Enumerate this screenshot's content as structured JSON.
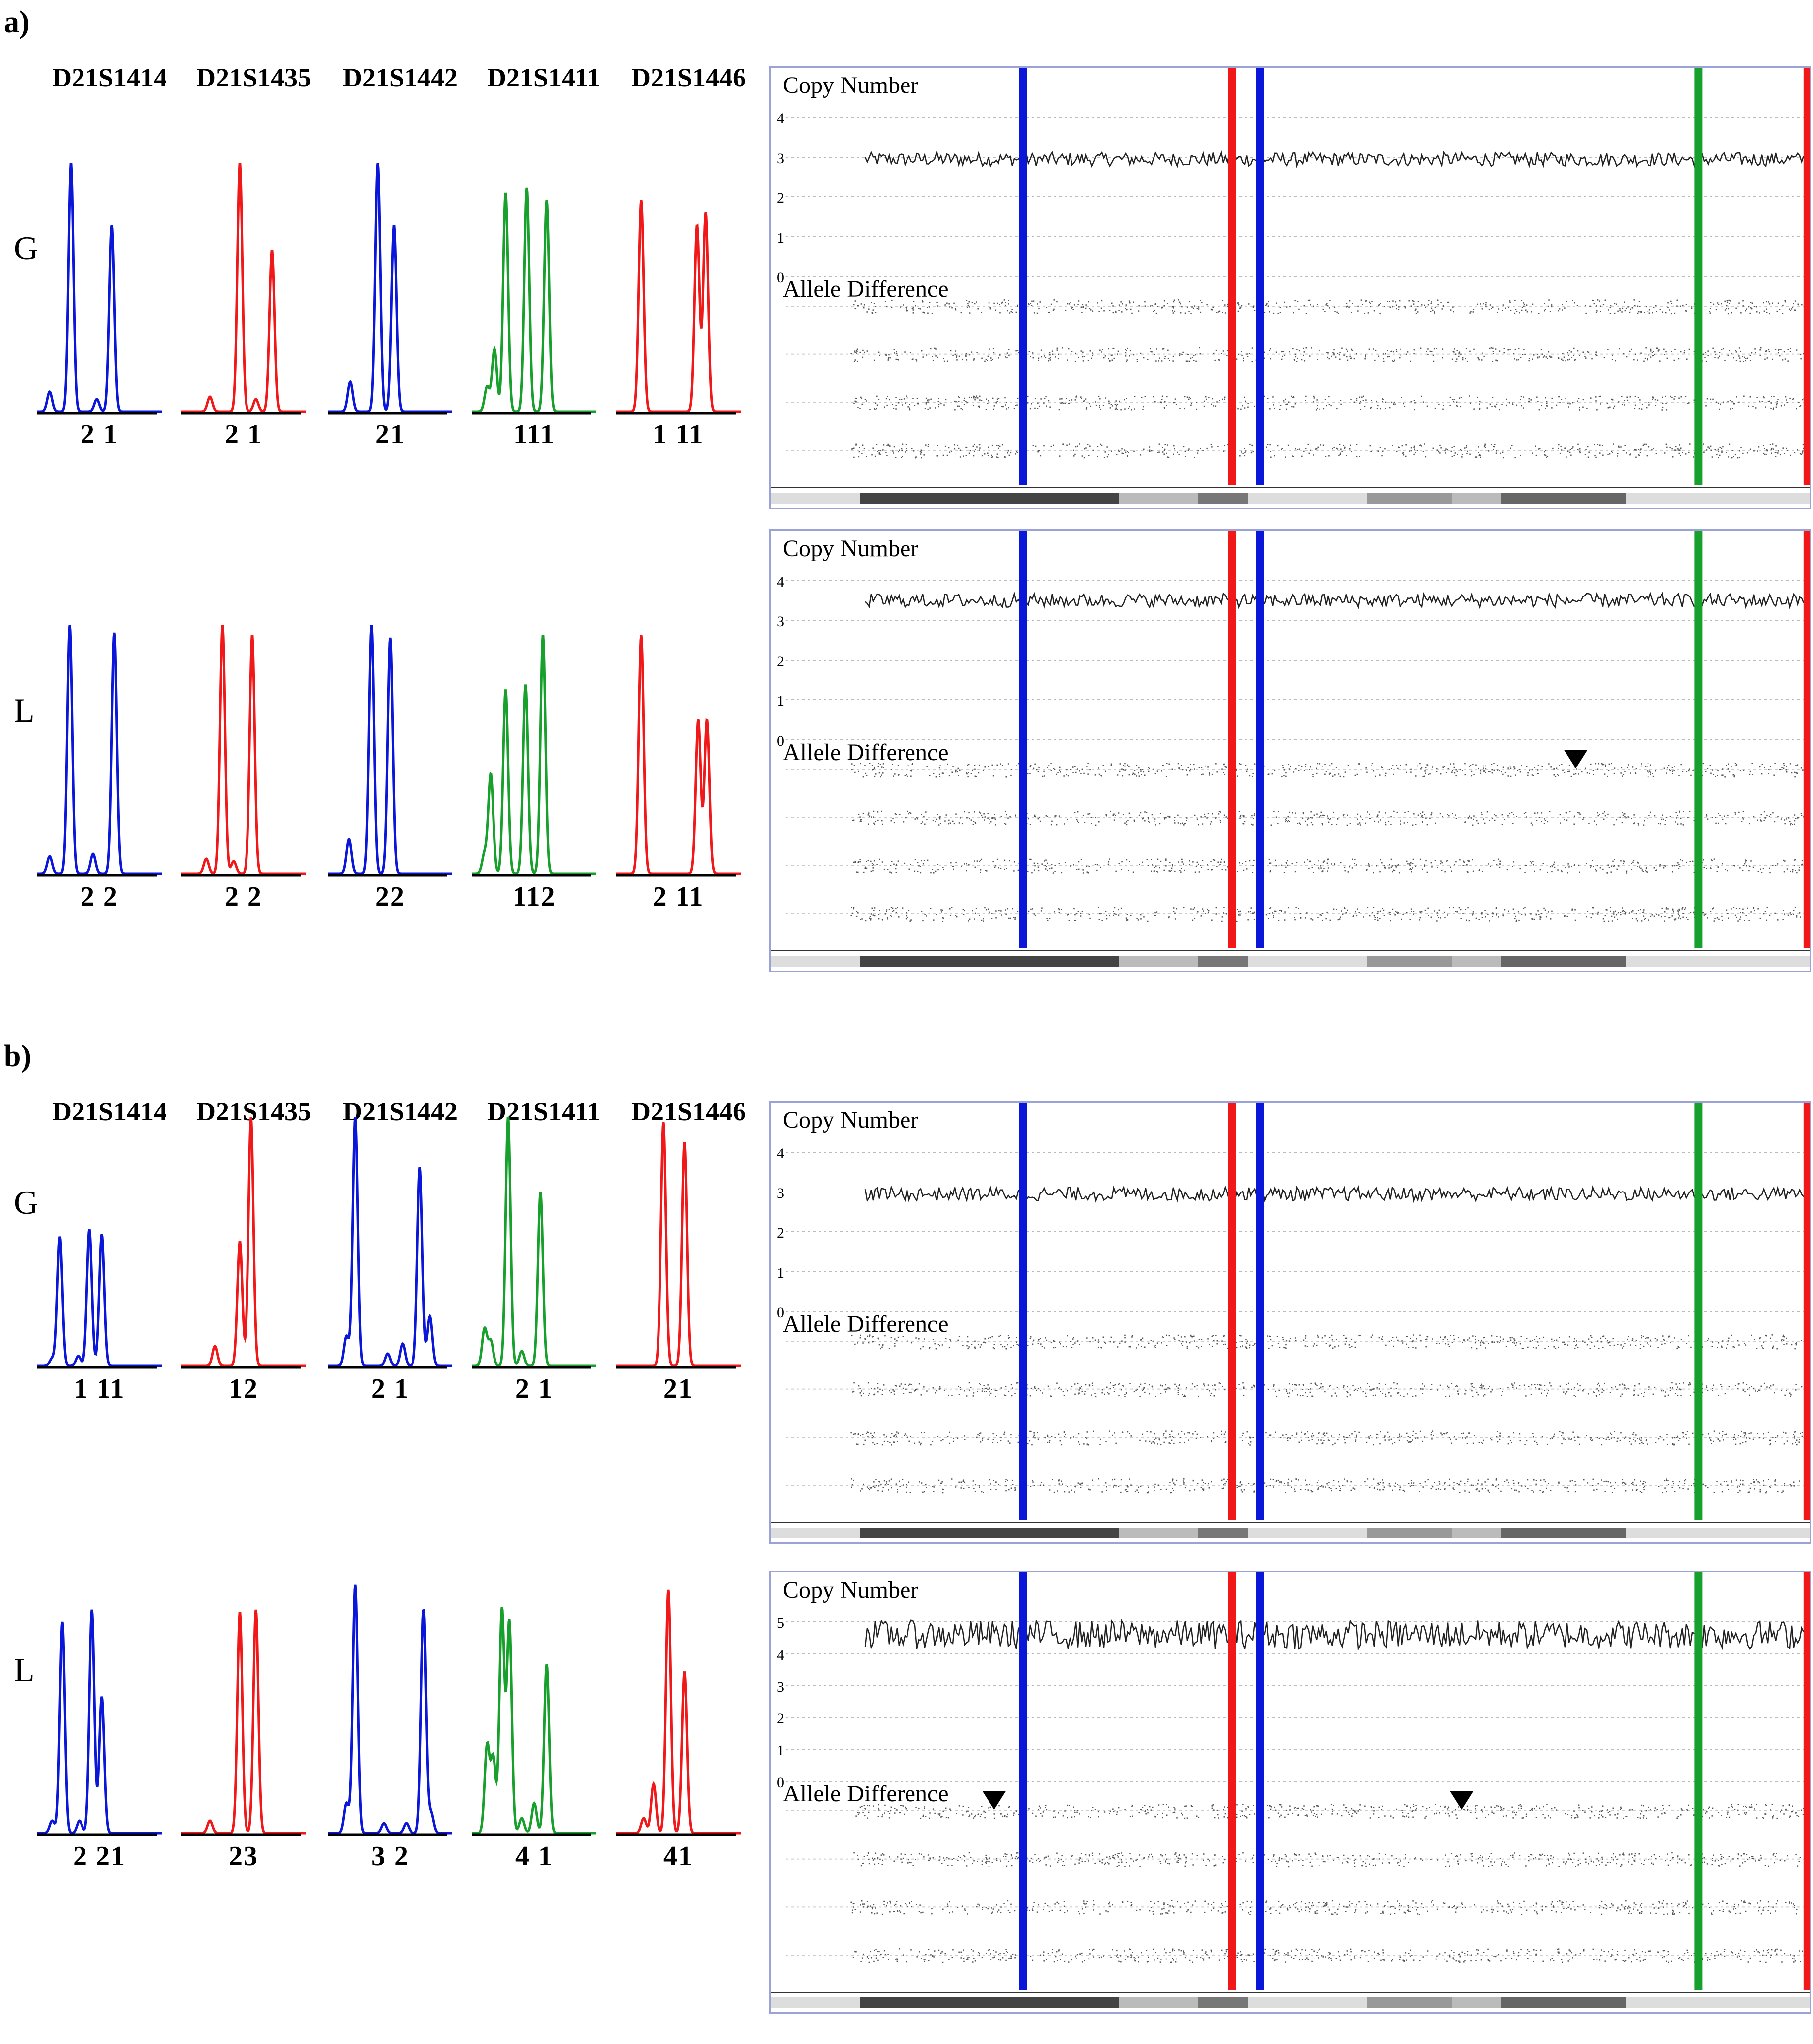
{
  "figure": {
    "sections": [
      {
        "label": "a)",
        "markers": [
          "D21S1414",
          "D21S1435",
          "D21S1442",
          "D21S1411",
          "D21S1446"
        ],
        "rows": [
          {
            "label": "G",
            "alleles": [
              "2 1",
              "2 1",
              "21",
              "111",
              "1 11"
            ],
            "copy_number_ticks": [
              "4",
              "3",
              "2",
              "1",
              "0"
            ],
            "copy_number_level": 2.95,
            "arrows": []
          },
          {
            "label": "L",
            "alleles": [
              "2 2",
              "2 2",
              "22",
              "112",
              "2 11"
            ],
            "copy_number_ticks": [
              "4",
              "3",
              "2",
              "1",
              "0"
            ],
            "copy_number_level": 3.5,
            "arrows": [
              0.775
            ]
          }
        ]
      },
      {
        "label": "b)",
        "markers": [
          "D21S1414",
          "D21S1435",
          "D21S1442",
          "D21S1411",
          "D21S1446"
        ],
        "rows": [
          {
            "label": "G",
            "alleles": [
              "1 11",
              "12",
              "2 1",
              "2 1",
              "21"
            ],
            "copy_number_ticks": [
              "4",
              "3",
              "2",
              "1",
              "0"
            ],
            "copy_number_level": 2.95,
            "arrows": []
          },
          {
            "label": "L",
            "alleles": [
              "2 21",
              "23",
              "3 2",
              "4 1",
              "41"
            ],
            "copy_number_ticks": [
              "5",
              "4",
              "3",
              "2",
              "1",
              "0"
            ],
            "copy_number_level": 4.6,
            "arrows": [
              0.215,
              0.665
            ]
          }
        ]
      }
    ],
    "panel_titles": {
      "copy_number": "Copy Number",
      "allele_difference": "Allele Difference"
    },
    "colors": {
      "blue": "#0a16d8",
      "red": "#f01818",
      "green": "#17a02c",
      "black": "#000000",
      "panel_border": "#9aa2d8"
    },
    "marker_colors": [
      "blue",
      "red",
      "blue",
      "green",
      "red"
    ]
  }
}
